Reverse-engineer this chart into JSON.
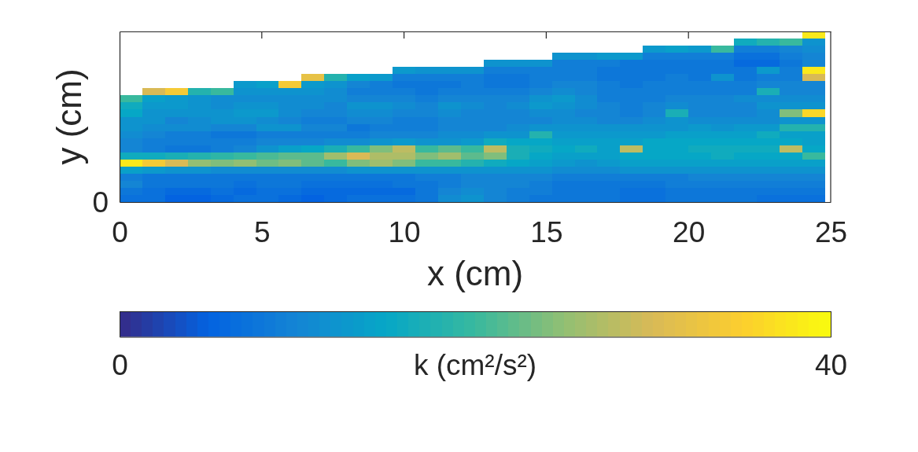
{
  "chart_data": {
    "type": "heatmap",
    "xlabel": "x (cm)",
    "ylabel": "y (cm)",
    "clabel": "k (cm²/s²)",
    "annotations": [
      "0"
    ],
    "x": [
      0.4,
      1.2,
      2,
      2.8,
      3.6,
      4.4,
      5.2,
      6,
      6.8,
      7.6,
      8.4,
      9.2,
      10,
      10.8,
      11.6,
      12.4,
      13.2,
      14,
      14.8,
      15.6,
      16.4,
      17.2,
      18,
      18.8,
      19.6,
      20.4,
      21.2,
      22,
      22.8,
      23.6,
      24.4
    ],
    "xlim": [
      0,
      25
    ],
    "xticks": [
      0,
      5,
      10,
      15,
      20,
      25
    ],
    "y_categories": [
      null,
      null,
      null,
      null,
      null,
      null,
      null,
      null,
      null,
      null,
      null,
      null,
      null,
      null,
      null,
      null,
      null,
      null,
      null,
      null,
      null,
      null,
      null,
      null
    ],
    "clim": [
      0,
      40
    ],
    "cticks": [
      0,
      40
    ],
    "cells": [
      [
        null,
        null,
        null,
        null,
        null,
        null,
        null,
        null,
        null,
        null,
        null,
        null,
        null,
        null,
        null,
        null,
        null,
        null,
        null,
        null,
        null,
        null,
        null,
        null,
        null,
        null,
        null,
        null,
        null,
        null,
        38
      ],
      [
        null,
        null,
        null,
        null,
        null,
        null,
        null,
        null,
        null,
        null,
        null,
        null,
        null,
        null,
        null,
        null,
        null,
        null,
        null,
        null,
        null,
        null,
        null,
        null,
        null,
        null,
        null,
        16,
        18,
        20,
        12
      ],
      [
        null,
        null,
        null,
        null,
        null,
        null,
        null,
        null,
        null,
        null,
        null,
        null,
        null,
        null,
        null,
        null,
        null,
        null,
        null,
        null,
        null,
        null,
        null,
        13,
        14,
        13,
        20,
        9,
        9,
        10,
        11
      ],
      [
        null,
        null,
        null,
        null,
        null,
        null,
        null,
        null,
        null,
        null,
        null,
        null,
        null,
        null,
        null,
        null,
        null,
        null,
        null,
        12,
        12,
        13,
        13,
        9,
        9,
        9,
        9,
        7,
        7,
        9,
        10
      ],
      [
        null,
        null,
        null,
        null,
        null,
        null,
        null,
        null,
        null,
        null,
        null,
        null,
        null,
        null,
        null,
        null,
        12,
        12,
        12,
        9,
        9,
        9,
        8,
        8,
        8,
        8,
        8,
        6,
        6,
        8,
        10
      ],
      [
        null,
        null,
        null,
        null,
        null,
        null,
        null,
        null,
        null,
        null,
        null,
        null,
        13,
        12,
        12,
        12,
        9,
        9,
        9,
        9,
        9,
        8,
        8,
        8,
        8,
        8,
        8,
        8,
        13,
        9,
        38
      ],
      [
        null,
        null,
        null,
        null,
        null,
        null,
        null,
        null,
        32,
        18,
        14,
        13,
        9,
        9,
        9,
        9,
        8,
        8,
        9,
        9,
        9,
        8,
        8,
        8,
        9,
        8,
        12,
        8,
        9,
        9,
        30
      ],
      [
        null,
        null,
        null,
        null,
        null,
        13,
        14,
        34,
        13,
        12,
        10,
        9,
        8,
        8,
        8,
        9,
        8,
        8,
        9,
        10,
        10,
        9,
        8,
        9,
        9,
        9,
        9,
        9,
        10,
        10,
        10
      ],
      [
        null,
        30,
        34,
        18,
        20,
        12,
        12,
        12,
        12,
        11,
        9,
        9,
        9,
        8,
        9,
        9,
        9,
        9,
        10,
        11,
        10,
        9,
        9,
        9,
        9,
        9,
        9,
        9,
        17,
        10,
        10
      ],
      [
        20,
        14,
        13,
        12,
        11,
        11,
        11,
        11,
        11,
        11,
        10,
        10,
        10,
        9,
        10,
        10,
        10,
        10,
        12,
        13,
        11,
        9,
        9,
        9,
        10,
        10,
        10,
        11,
        11,
        11,
        11
      ],
      [
        16,
        13,
        13,
        12,
        11,
        12,
        12,
        11,
        11,
        10,
        12,
        12,
        11,
        10,
        12,
        11,
        10,
        11,
        13,
        12,
        11,
        10,
        9,
        10,
        11,
        10,
        10,
        10,
        12,
        12,
        12
      ],
      [
        15,
        12,
        12,
        12,
        12,
        13,
        13,
        11,
        10,
        10,
        11,
        11,
        10,
        10,
        11,
        10,
        10,
        10,
        11,
        11,
        10,
        10,
        9,
        10,
        17,
        10,
        10,
        10,
        11,
        24,
        36
      ],
      [
        12,
        12,
        10,
        11,
        12,
        12,
        11,
        10,
        9,
        9,
        10,
        10,
        9,
        9,
        10,
        10,
        10,
        10,
        10,
        11,
        11,
        10,
        10,
        11,
        12,
        11,
        11,
        11,
        11,
        12,
        12
      ],
      [
        12,
        11,
        11,
        11,
        10,
        10,
        12,
        12,
        10,
        10,
        8,
        9,
        9,
        9,
        10,
        10,
        10,
        11,
        12,
        12,
        12,
        12,
        12,
        12,
        12,
        13,
        12,
        13,
        13,
        18,
        18
      ],
      [
        11,
        10,
        9,
        9,
        8,
        8,
        9,
        9,
        9,
        9,
        9,
        10,
        10,
        10,
        11,
        11,
        12,
        12,
        18,
        13,
        13,
        13,
        13,
        13,
        14,
        14,
        14,
        14,
        16,
        14,
        14
      ],
      [
        10,
        9,
        9,
        9,
        9,
        9,
        10,
        10,
        10,
        11,
        11,
        12,
        13,
        12,
        12,
        13,
        16,
        15,
        15,
        14,
        14,
        14,
        14,
        15,
        15,
        15,
        15,
        15,
        15,
        15,
        14
      ],
      [
        10,
        9,
        8,
        8,
        9,
        10,
        12,
        14,
        15,
        17,
        20,
        24,
        28,
        20,
        22,
        20,
        28,
        17,
        16,
        15,
        16,
        14,
        28,
        15,
        15,
        16,
        16,
        16,
        16,
        28,
        15
      ],
      [
        16,
        16,
        17,
        18,
        19,
        20,
        21,
        22,
        22,
        26,
        30,
        27,
        27,
        24,
        26,
        22,
        24,
        17,
        15,
        14,
        14,
        14,
        15,
        15,
        15,
        15,
        16,
        15,
        15,
        15,
        20
      ],
      [
        38,
        34,
        30,
        25,
        24,
        25,
        23,
        24,
        22,
        20,
        24,
        26,
        24,
        20,
        20,
        18,
        16,
        15,
        14,
        13,
        12,
        13,
        14,
        14,
        14,
        14,
        14,
        14,
        14,
        14,
        14
      ],
      [
        14,
        13,
        12,
        12,
        11,
        11,
        11,
        11,
        11,
        11,
        12,
        12,
        12,
        12,
        12,
        12,
        12,
        12,
        12,
        11,
        11,
        11,
        12,
        12,
        12,
        12,
        12,
        12,
        12,
        12,
        12
      ],
      [
        9,
        8,
        8,
        8,
        8,
        8,
        8,
        8,
        8,
        8,
        8,
        8,
        8,
        9,
        9,
        10,
        10,
        10,
        10,
        9,
        9,
        9,
        9,
        9,
        9,
        10,
        10,
        10,
        10,
        10,
        10
      ],
      [
        10,
        8,
        8,
        8,
        8,
        7,
        8,
        8,
        7,
        7,
        7,
        7,
        8,
        8,
        9,
        10,
        10,
        10,
        9,
        8,
        8,
        8,
        8,
        8,
        9,
        9,
        9,
        9,
        9,
        9,
        9
      ],
      [
        8,
        7,
        6,
        6,
        7,
        6,
        7,
        7,
        6,
        6,
        6,
        6,
        6,
        8,
        10,
        11,
        10,
        9,
        9,
        8,
        8,
        8,
        7,
        7,
        8,
        8,
        8,
        8,
        8,
        8,
        8
      ],
      [
        7,
        7,
        5,
        5,
        6,
        7,
        7,
        6,
        5,
        6,
        7,
        7,
        7,
        8,
        11,
        12,
        10,
        9,
        8,
        8,
        8,
        8,
        7,
        7,
        8,
        8,
        8,
        8,
        7,
        7,
        7
      ]
    ]
  }
}
